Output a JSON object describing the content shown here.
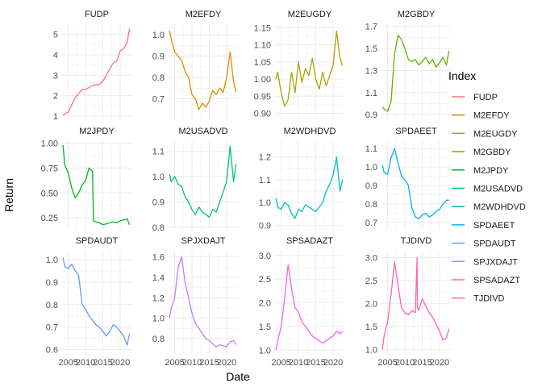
{
  "chart_data": {
    "type": "line",
    "facet": "small-multiples",
    "xlabel": "Date",
    "ylabel": "Return",
    "legend_title": "Index",
    "legend_position": "right",
    "grid": true,
    "x_ticks": [
      "2005",
      "2010",
      "2015",
      "2020"
    ],
    "xlim": [
      2003.0,
      2023.5
    ],
    "panels": [
      {
        "name": "FUDP",
        "color": "#F8766D",
        "ylim": [
          0.8,
          5.5
        ],
        "yticks": [
          1,
          2,
          3,
          4,
          5
        ],
        "ytick_labels": [
          "1",
          "2",
          "3",
          "4",
          "5"
        ],
        "x": [
          2003.5,
          2005,
          2007,
          2008.5,
          2009,
          2010,
          2012,
          2014,
          2015,
          2016,
          2017,
          2018,
          2019,
          2020,
          2021,
          2022,
          2022.7
        ],
        "y": [
          1.05,
          1.2,
          1.9,
          2.2,
          2.3,
          2.3,
          2.5,
          2.55,
          2.7,
          3.0,
          3.3,
          3.6,
          3.7,
          4.2,
          4.3,
          4.6,
          5.3
        ]
      },
      {
        "name": "M2EFDY",
        "color": "#DB8E00",
        "ylim": [
          0.6,
          1.05
        ],
        "yticks": [
          0.7,
          0.8,
          0.9,
          1.0
        ],
        "ytick_labels": [
          "0.7",
          "0.8",
          "0.9",
          "1.0"
        ],
        "x": [
          2003.5,
          2004,
          2005,
          2006,
          2007,
          2008,
          2009,
          2010,
          2011,
          2012,
          2013,
          2014,
          2015,
          2016,
          2017,
          2018,
          2019,
          2020,
          2021,
          2022,
          2022.7
        ],
        "y": [
          1.02,
          0.98,
          0.92,
          0.9,
          0.88,
          0.83,
          0.8,
          0.72,
          0.7,
          0.65,
          0.68,
          0.66,
          0.69,
          0.74,
          0.72,
          0.75,
          0.73,
          0.8,
          0.92,
          0.78,
          0.73
        ]
      },
      {
        "name": "M2EUGDY",
        "color": "#AEA200",
        "ylim": [
          0.88,
          1.16
        ],
        "yticks": [
          0.9,
          0.95,
          1.0,
          1.05,
          1.1,
          1.15
        ],
        "ytick_labels": [
          "0.90",
          "0.95",
          "1.00",
          "1.05",
          "1.10",
          "1.15"
        ],
        "x": [
          2003.5,
          2004,
          2005,
          2006,
          2007,
          2008,
          2009,
          2010,
          2011,
          2012,
          2013,
          2014,
          2015,
          2016,
          2017,
          2018,
          2019,
          2020,
          2021,
          2022,
          2022.7
        ],
        "y": [
          1.0,
          1.02,
          0.96,
          0.92,
          0.94,
          1.02,
          0.96,
          1.05,
          0.99,
          1.03,
          1.01,
          1.06,
          1.0,
          0.97,
          1.02,
          0.98,
          1.01,
          1.04,
          1.14,
          1.06,
          1.04
        ]
      },
      {
        "name": "M2GBDY",
        "color": "#64B200",
        "ylim": [
          0.85,
          1.72
        ],
        "yticks": [
          0.9,
          1.1,
          1.3,
          1.5,
          1.7
        ],
        "ytick_labels": [
          "0.9",
          "1.1",
          "1.3",
          "1.5",
          "1.7"
        ],
        "x": [
          2003.5,
          2004,
          2005,
          2006,
          2007,
          2008,
          2009,
          2010,
          2011,
          2012,
          2013,
          2014,
          2015,
          2016,
          2017,
          2018,
          2019,
          2020,
          2021,
          2022,
          2022.7
        ],
        "y": [
          0.97,
          0.95,
          0.93,
          1.02,
          1.45,
          1.62,
          1.58,
          1.5,
          1.4,
          1.38,
          1.4,
          1.35,
          1.38,
          1.42,
          1.36,
          1.4,
          1.33,
          1.37,
          1.42,
          1.35,
          1.48
        ]
      },
      {
        "name": "M2JPDY",
        "color": "#00B81F",
        "ylim": [
          0.13,
          1.02
        ],
        "yticks": [
          0.25,
          0.5,
          0.75,
          1.0
        ],
        "ytick_labels": [
          "0.25",
          "0.50",
          "0.75",
          "1.00"
        ],
        "x": [
          2003.5,
          2004,
          2005,
          2006,
          2007,
          2008,
          2009,
          2010,
          2011,
          2012,
          2012.3,
          2013,
          2014,
          2015,
          2016,
          2017,
          2018,
          2019,
          2020,
          2021,
          2022,
          2022.7
        ],
        "y": [
          0.98,
          0.78,
          0.7,
          0.55,
          0.45,
          0.5,
          0.58,
          0.62,
          0.75,
          0.72,
          0.22,
          0.21,
          0.2,
          0.18,
          0.19,
          0.2,
          0.21,
          0.2,
          0.22,
          0.23,
          0.24,
          0.18
        ]
      },
      {
        "name": "M2USADVD",
        "color": "#00BF7D",
        "ylim": [
          0.79,
          1.14
        ],
        "yticks": [
          0.8,
          0.9,
          1.0,
          1.1
        ],
        "ytick_labels": [
          "0.8",
          "0.9",
          "1.0",
          "1.1"
        ],
        "x": [
          2003.5,
          2004,
          2005,
          2006,
          2007,
          2008,
          2009,
          2010,
          2011,
          2012,
          2013,
          2014,
          2015,
          2016,
          2017,
          2018,
          2019,
          2020,
          2021,
          2022,
          2022.7
        ],
        "y": [
          1.01,
          0.98,
          1.0,
          0.97,
          0.96,
          0.92,
          0.9,
          0.87,
          0.85,
          0.88,
          0.86,
          0.85,
          0.84,
          0.87,
          0.86,
          0.9,
          0.94,
          0.98,
          1.12,
          0.98,
          1.05
        ]
      },
      {
        "name": "M2WDHDVD",
        "color": "#00BFC4",
        "ylim": [
          0.88,
          1.27
        ],
        "yticks": [
          0.9,
          1.0,
          1.1,
          1.2
        ],
        "ytick_labels": [
          "0.9",
          "1.0",
          "1.1",
          "1.2"
        ],
        "x": [
          2003.5,
          2004,
          2005,
          2006,
          2007,
          2008,
          2009,
          2010,
          2011,
          2012,
          2013,
          2014,
          2015,
          2016,
          2017,
          2018,
          2019,
          2020,
          2021,
          2022,
          2022.7
        ],
        "y": [
          1.02,
          0.98,
          0.97,
          1.0,
          0.99,
          0.95,
          0.93,
          0.97,
          0.96,
          0.99,
          0.98,
          0.97,
          0.96,
          0.98,
          1.0,
          1.05,
          1.08,
          1.12,
          1.2,
          1.05,
          1.1
        ]
      },
      {
        "name": "SPDAEET",
        "color": "#00B0F6",
        "ylim": [
          0.66,
          1.14
        ],
        "yticks": [
          0.7,
          0.8,
          0.9,
          1.0,
          1.1
        ],
        "ytick_labels": [
          "0.7",
          "0.8",
          "0.9",
          "1.0",
          "1.1"
        ],
        "x": [
          2003.5,
          2004,
          2005,
          2006,
          2007,
          2008,
          2009,
          2010,
          2011,
          2012,
          2013,
          2014,
          2015,
          2016,
          2017,
          2018,
          2019,
          2020,
          2021,
          2022,
          2022.7
        ],
        "y": [
          1.01,
          0.97,
          0.96,
          1.05,
          1.1,
          1.02,
          0.95,
          0.93,
          0.9,
          0.78,
          0.73,
          0.72,
          0.74,
          0.75,
          0.73,
          0.74,
          0.76,
          0.77,
          0.8,
          0.82,
          0.82
        ]
      },
      {
        "name": "SPDAUDT",
        "color": "#619CFF",
        "ylim": [
          0.58,
          1.04
        ],
        "yticks": [
          0.6,
          0.7,
          0.8,
          0.9,
          1.0
        ],
        "ytick_labels": [
          "0.6",
          "0.7",
          "0.8",
          "0.9",
          "1.0"
        ],
        "x": [
          2003.5,
          2004,
          2005,
          2006,
          2007,
          2008,
          2009,
          2010,
          2011,
          2012,
          2013,
          2014,
          2015,
          2016,
          2017,
          2018,
          2019,
          2020,
          2021,
          2022,
          2022.7
        ],
        "y": [
          1.01,
          0.97,
          0.96,
          0.98,
          0.95,
          0.93,
          0.8,
          0.78,
          0.75,
          0.73,
          0.71,
          0.7,
          0.68,
          0.66,
          0.68,
          0.71,
          0.7,
          0.68,
          0.66,
          0.62,
          0.67
        ]
      },
      {
        "name": "SPJXDAJT",
        "color": "#B983FF",
        "ylim": [
          0.65,
          1.66
        ],
        "yticks": [
          0.8,
          1.0,
          1.2,
          1.4,
          1.6
        ],
        "ytick_labels": [
          "0.8",
          "1.0",
          "1.2",
          "1.4",
          "1.6"
        ],
        "x": [
          2003.5,
          2004,
          2005,
          2006,
          2007,
          2008,
          2009,
          2010,
          2011,
          2012,
          2013,
          2014,
          2015,
          2016,
          2017,
          2018,
          2019,
          2020,
          2021,
          2022,
          2022.7
        ],
        "y": [
          1.0,
          1.1,
          1.2,
          1.5,
          1.6,
          1.35,
          1.2,
          1.05,
          0.95,
          0.9,
          0.85,
          0.8,
          0.78,
          0.75,
          0.72,
          0.74,
          0.73,
          0.72,
          0.77,
          0.78,
          0.74
        ]
      },
      {
        "name": "SPSADAZT",
        "color": "#F564E3",
        "ylim": [
          0.92,
          3.1
        ],
        "yticks": [
          1.0,
          1.5,
          2.0,
          2.5,
          3.0
        ],
        "ytick_labels": [
          "1.0",
          "1.5",
          "2.0",
          "2.5",
          "3.0"
        ],
        "x": [
          2003.5,
          2004,
          2005,
          2006,
          2007,
          2008,
          2009,
          2010,
          2011,
          2012,
          2013,
          2014,
          2015,
          2016,
          2017,
          2018,
          2019,
          2020,
          2021,
          2022,
          2022.7
        ],
        "y": [
          1.0,
          1.2,
          1.5,
          2.1,
          2.8,
          2.3,
          1.9,
          1.8,
          1.6,
          1.5,
          1.4,
          1.3,
          1.25,
          1.2,
          1.15,
          1.2,
          1.25,
          1.3,
          1.4,
          1.35,
          1.4
        ]
      },
      {
        "name": "TJDIVD",
        "color": "#FF64B0",
        "ylim": [
          0.9,
          3.15
        ],
        "yticks": [
          1.0,
          1.5,
          2.0,
          2.5,
          3.0
        ],
        "ytick_labels": [
          "1.0",
          "1.5",
          "2.0",
          "2.5",
          "3.0"
        ],
        "x": [
          2003.5,
          2004,
          2005,
          2006,
          2007,
          2008,
          2009,
          2010,
          2011,
          2012,
          2013,
          2013.5,
          2013.6,
          2014,
          2015,
          2016,
          2017,
          2018,
          2019,
          2020,
          2021,
          2022,
          2022.7
        ],
        "y": [
          1.0,
          1.3,
          1.6,
          2.2,
          2.9,
          2.4,
          1.9,
          1.8,
          1.75,
          1.85,
          1.8,
          3.0,
          1.9,
          1.85,
          2.1,
          1.95,
          1.8,
          1.7,
          1.55,
          1.4,
          1.2,
          1.25,
          1.45
        ]
      }
    ]
  }
}
